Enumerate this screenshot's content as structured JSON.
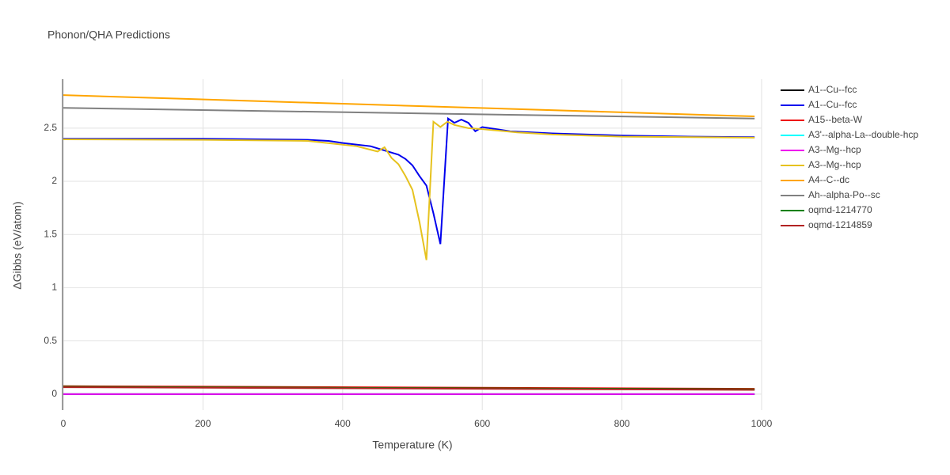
{
  "chart_data": {
    "type": "line",
    "title": "Phonon/QHA Predictions",
    "x_label": "Temperature (K)",
    "y_label": "ΔGibbs (eV/atom)",
    "xlim": [
      0,
      1000
    ],
    "xticks": [
      0,
      200,
      400,
      600,
      800,
      1000
    ],
    "ylim": [
      -0.15,
      2.96
    ],
    "yticks": [
      0,
      0.5,
      1,
      1.5,
      2,
      2.5
    ],
    "grid": true,
    "legend": "right",
    "series": [
      {
        "name": "A1--Cu--fcc",
        "color": "#000000",
        "x": [
          0,
          990
        ],
        "values": [
          0.0,
          0.0
        ]
      },
      {
        "name": "A1--Cu--fcc",
        "color": "#0000ee",
        "x": [
          0,
          200,
          350,
          380,
          400,
          440,
          460,
          480,
          490,
          500,
          510,
          520,
          530,
          540,
          551,
          560,
          570,
          580,
          590,
          600,
          640,
          700,
          800,
          900,
          990
        ],
        "values": [
          2.4,
          2.4,
          2.39,
          2.38,
          2.36,
          2.33,
          2.29,
          2.25,
          2.21,
          2.15,
          2.05,
          1.96,
          1.7,
          1.41,
          2.59,
          2.55,
          2.58,
          2.55,
          2.47,
          2.51,
          2.47,
          2.45,
          2.43,
          2.42,
          2.415
        ]
      },
      {
        "name": "A15--beta-W",
        "color": "#ee0000",
        "x": [
          0,
          990
        ],
        "values": [
          0.075,
          0.05
        ]
      },
      {
        "name": "A3'--alpha-La--double-hcp",
        "color": "#00ffff",
        "x": [
          0,
          990
        ],
        "values": [
          0.0,
          0.0
        ]
      },
      {
        "name": "A3--Mg--hcp",
        "color": "#ee00ee",
        "x": [
          0,
          990
        ],
        "values": [
          0.0,
          0.0
        ]
      },
      {
        "name": "A3--Mg--hcp",
        "color": "#e6c21e",
        "x": [
          0,
          200,
          350,
          420,
          450,
          460,
          470,
          480,
          490,
          500,
          510,
          520,
          530,
          540,
          550,
          560,
          580,
          600,
          650,
          700,
          800,
          990
        ],
        "values": [
          2.395,
          2.39,
          2.38,
          2.33,
          2.28,
          2.32,
          2.22,
          2.16,
          2.05,
          1.92,
          1.62,
          1.26,
          2.56,
          2.51,
          2.56,
          2.53,
          2.5,
          2.49,
          2.46,
          2.44,
          2.42,
          2.41
        ]
      },
      {
        "name": "A4--C--dc",
        "color": "#ffa500",
        "x": [
          0,
          990
        ],
        "values": [
          2.81,
          2.61
        ]
      },
      {
        "name": "Ah--alpha-Po--sc",
        "color": "#808080",
        "x": [
          0,
          990
        ],
        "values": [
          2.69,
          2.59
        ]
      },
      {
        "name": "oqmd-1214770",
        "color": "#008000",
        "x": [
          0,
          990
        ],
        "values": [
          0.07,
          0.045
        ]
      },
      {
        "name": "oqmd-1214859",
        "color": "#b22222",
        "x": [
          0,
          990
        ],
        "values": [
          0.065,
          0.04
        ]
      }
    ]
  }
}
